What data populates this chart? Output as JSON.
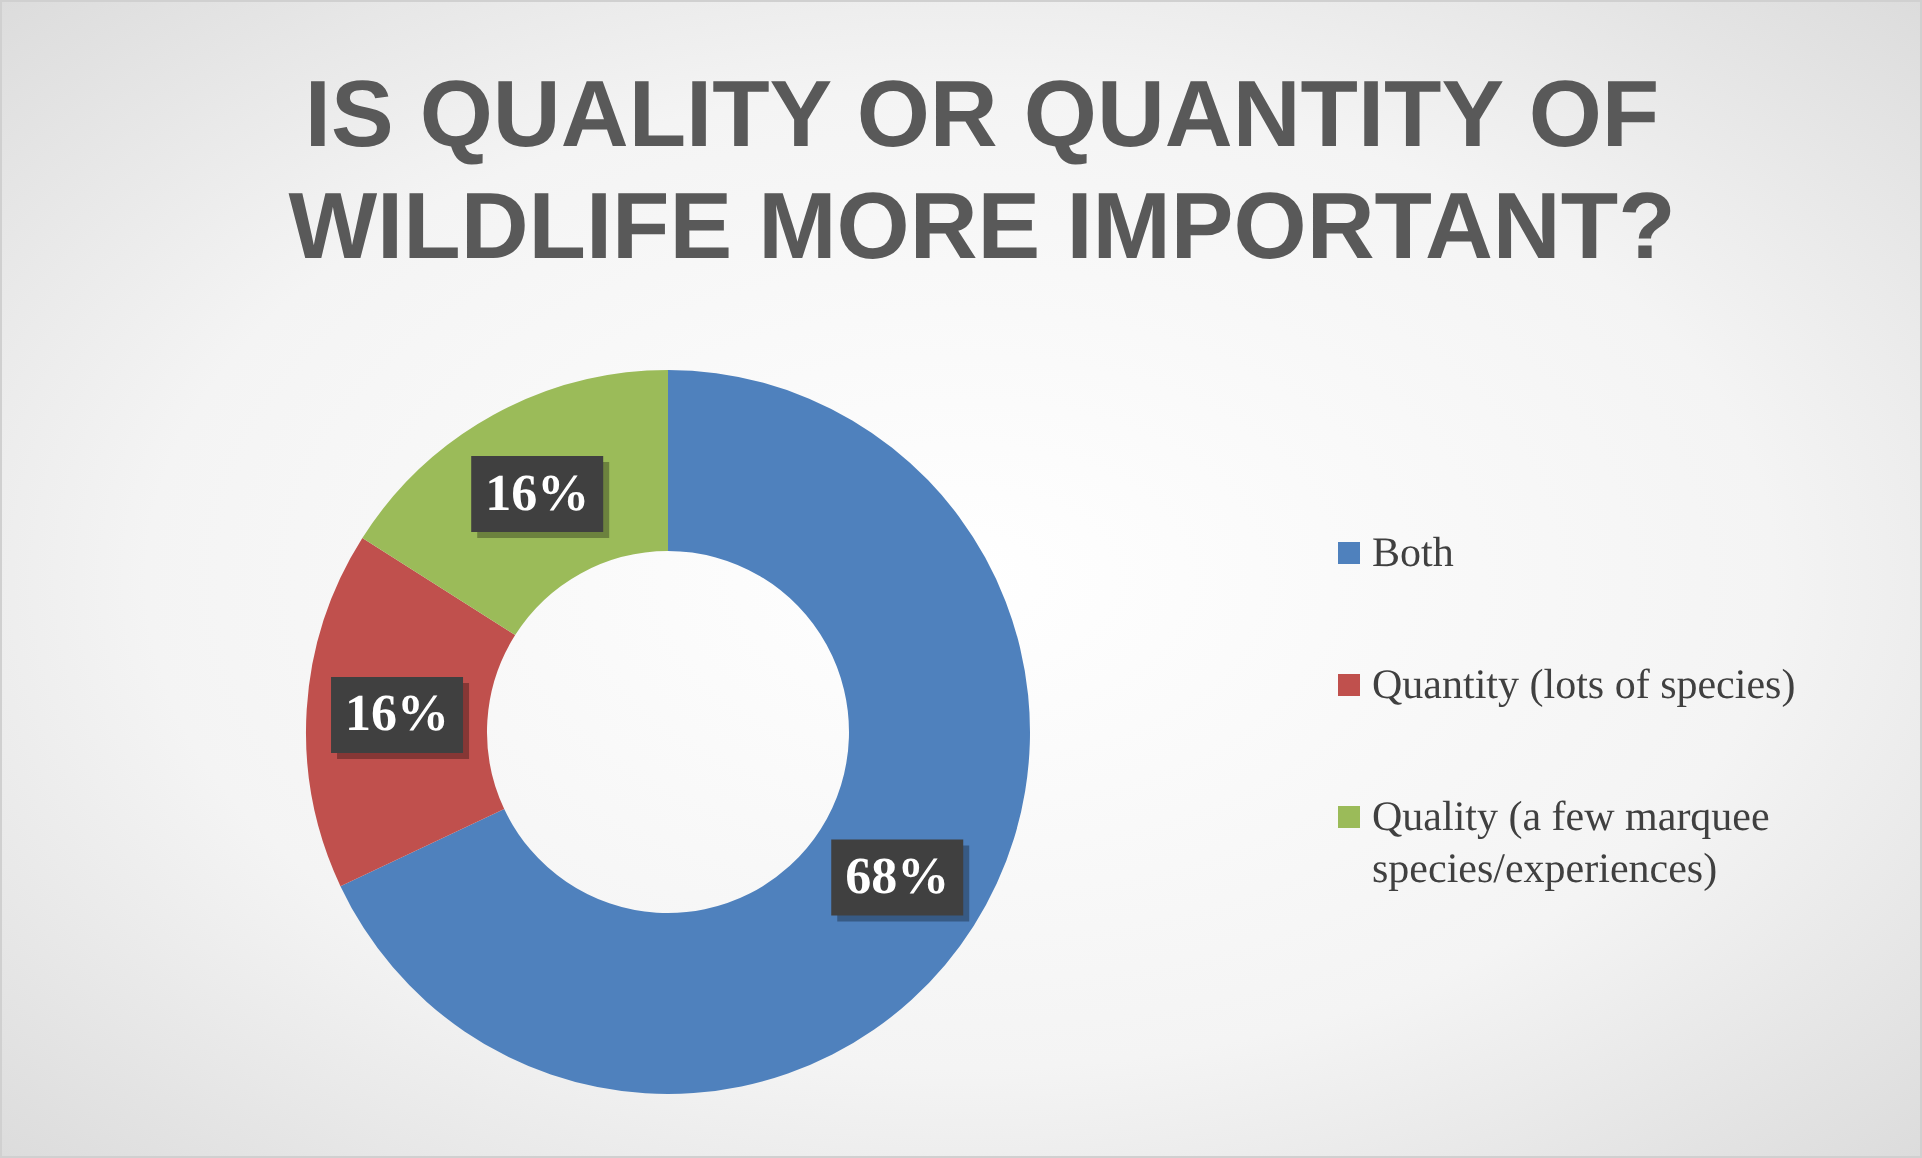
{
  "chart_data": {
    "type": "donut",
    "title": "IS QUALITY OR QUANTITY OF WILDLIFE MORE IMPORTANT?",
    "categories": [
      "Both",
      "Quantity (lots of species)",
      "Quality (a few marquee species/experiences)"
    ],
    "values": [
      68,
      16,
      16
    ],
    "colors": [
      "#4f81bd",
      "#c0504d",
      "#9bbb59"
    ],
    "value_labels": [
      "68%",
      "16%",
      "16%"
    ],
    "legend": "right"
  }
}
